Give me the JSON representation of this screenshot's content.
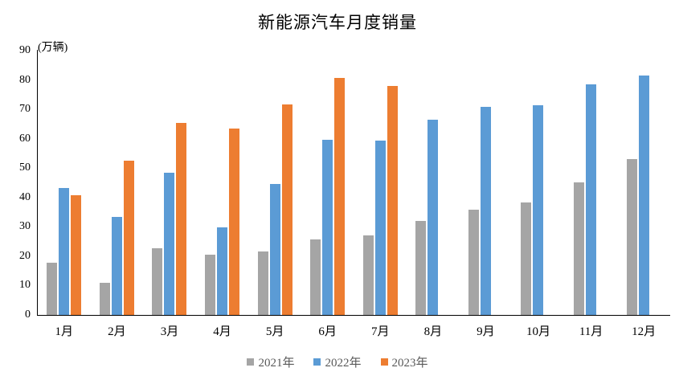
{
  "title": "新能源汽车月度销量",
  "y_axis_unit": "(万辆)",
  "chart_data": {
    "type": "bar",
    "title": "新能源汽车月度销量",
    "xlabel": "",
    "ylabel": "(万辆)",
    "categories": [
      "1月",
      "2月",
      "3月",
      "4月",
      "5月",
      "6月",
      "7月",
      "8月",
      "9月",
      "10月",
      "11月",
      "12月"
    ],
    "series": [
      {
        "name": "2021年",
        "color": "#A5A5A5",
        "values": [
          17.9,
          11.0,
          22.6,
          20.6,
          21.7,
          25.6,
          27.1,
          32.1,
          35.7,
          38.3,
          45.0,
          53.1
        ]
      },
      {
        "name": "2022年",
        "color": "#5B9BD5",
        "values": [
          43.1,
          33.4,
          48.4,
          29.9,
          44.7,
          59.6,
          59.3,
          66.6,
          70.8,
          71.4,
          78.6,
          81.4
        ]
      },
      {
        "name": "2023年",
        "color": "#ED7D31",
        "values": [
          40.8,
          52.5,
          65.3,
          63.6,
          71.7,
          80.6,
          78.0,
          null,
          null,
          null,
          null,
          null
        ]
      }
    ],
    "ylim": [
      0,
      90
    ],
    "y_ticks": [
      0,
      10,
      20,
      30,
      40,
      50,
      60,
      70,
      80,
      90
    ],
    "grid": false,
    "legend_position": "bottom"
  },
  "legend": {
    "items": [
      {
        "label": "2021年",
        "color": "#A5A5A5"
      },
      {
        "label": "2022年",
        "color": "#5B9BD5"
      },
      {
        "label": "2023年",
        "color": "#ED7D31"
      }
    ]
  },
  "axis_color": "#000000",
  "legend_text_color": "#595959"
}
